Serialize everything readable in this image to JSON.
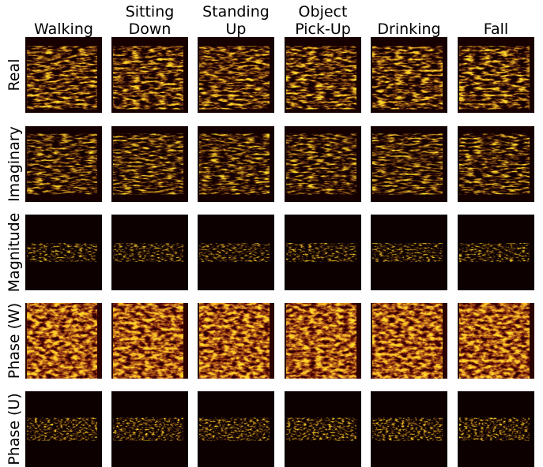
{
  "columns": [
    "Walking",
    "Sitting\nDown",
    "Standing\nUp",
    "Object\nPick-Up",
    "Drinking",
    "Fall"
  ],
  "rows": [
    "Real",
    "Imaginary",
    "Magnitude",
    "Phase (W)",
    "Phase (U)"
  ]
}
